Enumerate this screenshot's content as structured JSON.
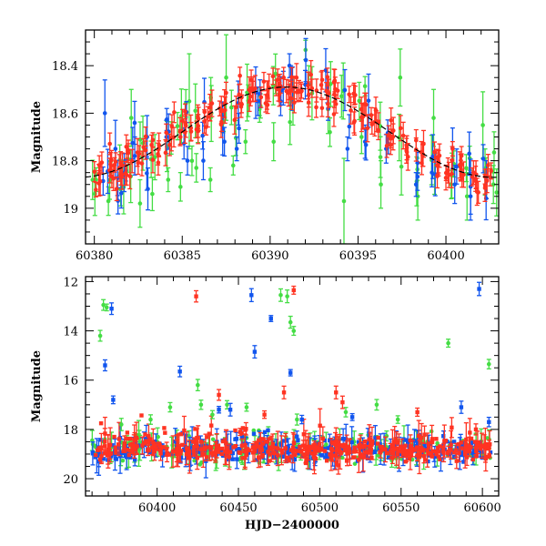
{
  "colors": {
    "green": "#44dd44",
    "blue": "#1155ee",
    "red": "#ff3322",
    "model": "#000000",
    "frame": "#000000"
  },
  "chart_data": [
    {
      "id": "top",
      "type": "scatter",
      "title": "",
      "xlabel": "",
      "ylabel": "Magnitude",
      "xlim": [
        60379.5,
        60403
      ],
      "ylim": [
        19.15,
        18.25
      ],
      "y_inverted": true,
      "xticks": [
        60380,
        60385,
        60390,
        60395,
        60400
      ],
      "xtick_labels": [
        "60380",
        "60385",
        "60390",
        "60395",
        "60400"
      ],
      "yticks": [
        18.4,
        18.6,
        18.8,
        19
      ],
      "ytick_labels": [
        "18.4",
        "18.6",
        "18.8",
        "19"
      ],
      "grid": false,
      "model_curve": {
        "description": "sinusoidal light curve",
        "period_days": 23.7,
        "max_hjd": 60390.9,
        "mean_mag": 18.68,
        "amplitude_mag": 0.19
      },
      "series": [
        {
          "color": "green",
          "points": [
            [
              60380.1,
              18.88,
              0.05
            ],
            [
              60380.8,
              18.97,
              0.06
            ],
            [
              60381.5,
              18.92,
              0.07
            ],
            [
              60382.1,
              18.62,
              0.12
            ],
            [
              60382.6,
              18.98,
              0.1
            ],
            [
              60383.3,
              18.94,
              0.07
            ],
            [
              60384.2,
              18.88,
              0.05
            ],
            [
              60384.9,
              18.91,
              0.06
            ],
            [
              60385.4,
              18.55,
              0.2
            ],
            [
              60385.8,
              18.83,
              0.06
            ],
            [
              60386.6,
              18.88,
              0.05
            ],
            [
              60387.5,
              18.45,
              0.18
            ],
            [
              60387.9,
              18.82,
              0.04
            ],
            [
              60388.6,
              18.72,
              0.05
            ],
            [
              60389.4,
              18.55,
              0.06
            ],
            [
              60390.2,
              18.72,
              0.08
            ],
            [
              60391.3,
              18.55,
              0.1
            ],
            [
              60392.2,
              18.48,
              0.08
            ],
            [
              60393.4,
              18.68,
              0.06
            ],
            [
              60394.2,
              18.97,
              0.18
            ],
            [
              60395.2,
              18.7,
              0.07
            ],
            [
              60396.3,
              18.9,
              0.1
            ],
            [
              60397.4,
              18.45,
              0.12
            ],
            [
              60398.4,
              18.95,
              0.1
            ],
            [
              60399.3,
              18.62,
              0.12
            ],
            [
              60400.3,
              18.9,
              0.06
            ],
            [
              60401.2,
              18.95,
              0.1
            ],
            [
              60402.1,
              18.65,
              0.14
            ],
            [
              60402.7,
              18.9,
              0.08
            ]
          ]
        },
        {
          "color": "blue",
          "points": [
            [
              60380.6,
              18.6,
              0.14
            ],
            [
              60381.2,
              18.75,
              0.12
            ],
            [
              60381.7,
              18.85,
              0.08
            ],
            [
              60382.3,
              18.78,
              0.08
            ],
            [
              60383.0,
              18.7,
              0.09
            ],
            [
              60384.1,
              18.7,
              0.07
            ],
            [
              60385.3,
              18.8,
              0.06
            ],
            [
              60386.2,
              18.8,
              0.08
            ],
            [
              60387.4,
              18.72,
              0.06
            ],
            [
              60388.1,
              18.75,
              0.05
            ],
            [
              60389.3,
              18.55,
              0.06
            ],
            [
              60390.6,
              18.55,
              0.06
            ],
            [
              60391.1,
              18.4,
              0.05
            ],
            [
              60392.0,
              18.48,
              0.06
            ],
            [
              60393.3,
              18.58,
              0.05
            ],
            [
              60394.4,
              18.75,
              0.05
            ],
            [
              60395.4,
              18.72,
              0.07
            ],
            [
              60396.6,
              18.75,
              0.06
            ],
            [
              60398.3,
              18.9,
              0.05
            ],
            [
              60399.2,
              18.85,
              0.06
            ],
            [
              60400.5,
              18.9,
              0.08
            ],
            [
              60401.4,
              18.95,
              0.1
            ],
            [
              60402.3,
              18.88,
              0.08
            ]
          ]
        },
        {
          "color": "red",
          "points": [
            [
              60380.2,
              18.9,
              0.04
            ],
            [
              60380.9,
              18.85,
              0.04
            ],
            [
              60381.4,
              18.92,
              0.04
            ],
            [
              60382.0,
              18.85,
              0.05
            ],
            [
              60382.7,
              18.9,
              0.04
            ],
            [
              60383.5,
              18.85,
              0.04
            ],
            [
              60384.3,
              18.82,
              0.04
            ],
            [
              60385.0,
              18.8,
              0.04
            ],
            [
              60385.7,
              18.78,
              0.04
            ],
            [
              60386.5,
              18.75,
              0.04
            ],
            [
              60387.3,
              18.7,
              0.04
            ],
            [
              60388.2,
              18.68,
              0.04
            ],
            [
              60389.0,
              18.6,
              0.04
            ],
            [
              60389.7,
              18.52,
              0.04
            ],
            [
              60390.4,
              18.5,
              0.04
            ],
            [
              60391.0,
              18.48,
              0.04
            ],
            [
              60391.6,
              18.5,
              0.04
            ],
            [
              60392.4,
              18.55,
              0.04
            ],
            [
              60393.1,
              18.6,
              0.04
            ],
            [
              60393.8,
              18.65,
              0.04
            ],
            [
              60394.6,
              18.7,
              0.04
            ],
            [
              60395.3,
              18.75,
              0.04
            ],
            [
              60396.0,
              18.78,
              0.04
            ],
            [
              60396.8,
              18.8,
              0.04
            ],
            [
              60397.6,
              18.83,
              0.04
            ],
            [
              60398.5,
              18.85,
              0.04
            ],
            [
              60399.4,
              18.88,
              0.04
            ],
            [
              60400.2,
              18.9,
              0.04
            ],
            [
              60400.9,
              18.87,
              0.04
            ],
            [
              60401.6,
              18.92,
              0.05
            ],
            [
              60402.4,
              18.9,
              0.04
            ]
          ]
        }
      ]
    },
    {
      "id": "bottom",
      "type": "scatter",
      "title": "",
      "xlabel": "HJD−2400000",
      "ylabel": "Magnitude",
      "xlim": [
        60356,
        60610
      ],
      "ylim": [
        20.7,
        11.8
      ],
      "y_inverted": true,
      "xticks": [
        60400,
        60450,
        60500,
        60550,
        60600
      ],
      "xtick_labels": [
        "60400",
        "60450",
        "60500",
        "60550",
        "60600"
      ],
      "yticks": [
        12,
        14,
        16,
        18,
        20
      ],
      "ytick_labels": [
        "12",
        "14",
        "16",
        "18",
        "20"
      ],
      "grid": false,
      "series": [
        {
          "color": "green",
          "outliers": [
            [
              60367,
              12.95
            ],
            [
              60369,
              13.05
            ],
            [
              60365,
              14.2
            ],
            [
              60425,
              16.2
            ],
            [
              60427,
              17.0
            ],
            [
              60443,
              17.0
            ],
            [
              60455,
              17.1
            ],
            [
              60476,
              12.55
            ],
            [
              60480,
              12.6
            ],
            [
              60482,
              13.65
            ],
            [
              60484,
              14.0
            ],
            [
              60486,
              17.6
            ],
            [
              60516,
              17.3
            ],
            [
              60535,
              17.0
            ],
            [
              60548,
              17.6
            ],
            [
              60579,
              14.5
            ],
            [
              60604,
              15.35
            ],
            [
              60378,
              17.8
            ],
            [
              60396,
              17.6
            ],
            [
              60408,
              17.1
            ],
            [
              60434,
              17.4
            ]
          ]
        },
        {
          "color": "blue",
          "outliers": [
            [
              60368,
              15.4
            ],
            [
              60372,
              13.1
            ],
            [
              60373,
              16.8
            ],
            [
              60414,
              15.65
            ],
            [
              60458,
              12.55
            ],
            [
              60460,
              14.85
            ],
            [
              60470,
              13.5
            ],
            [
              60482,
              15.7
            ],
            [
              60520,
              17.5
            ],
            [
              60587,
              17.1
            ],
            [
              60598,
              12.3
            ],
            [
              60604,
              17.7
            ],
            [
              60438,
              17.2
            ],
            [
              60445,
              17.2
            ],
            [
              60489,
              17.6
            ]
          ]
        },
        {
          "color": "red",
          "outliers": [
            [
              60424,
              12.6
            ],
            [
              60484,
              12.35
            ],
            [
              60438,
              16.6
            ],
            [
              60466,
              17.4
            ],
            [
              60478,
              16.5
            ],
            [
              60510,
              16.5
            ],
            [
              60514,
              16.9
            ],
            [
              60560,
              17.3
            ],
            [
              60596,
              18.0
            ],
            [
              60451,
              18.1
            ]
          ]
        }
      ]
    }
  ]
}
